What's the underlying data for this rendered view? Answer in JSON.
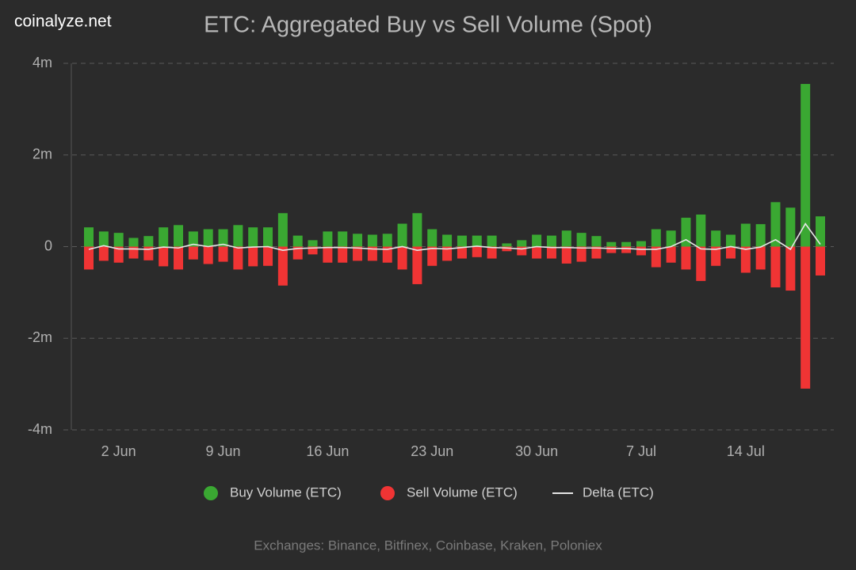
{
  "watermark": "coinalyze.net",
  "footer": "Exchanges: Binance, Bitfinex, Coinbase, Kraken, Poloniex",
  "chart_data": {
    "type": "bar",
    "title": "ETC: Aggregated Buy vs Sell Volume (Spot)",
    "categories": [
      null,
      null,
      "2 Jun",
      null,
      null,
      null,
      null,
      null,
      null,
      "9 Jun",
      null,
      null,
      null,
      null,
      null,
      null,
      "16 Jun",
      null,
      null,
      null,
      null,
      null,
      null,
      "23 Jun",
      null,
      null,
      null,
      null,
      null,
      null,
      "30 Jun",
      null,
      null,
      null,
      null,
      null,
      null,
      "7 Jul",
      null,
      null,
      null,
      null,
      null,
      null,
      "14 Jul",
      null,
      null,
      null,
      null,
      null
    ],
    "ylim": [
      -4000000,
      4000000
    ],
    "yticks": [
      {
        "value": -4000000,
        "label": "-4m"
      },
      {
        "value": -2000000,
        "label": "-2m"
      },
      0,
      {
        "value": 2000000,
        "label": "2m"
      },
      {
        "value": 4000000,
        "label": "4m"
      }
    ],
    "grid": true,
    "legend": "bottom",
    "series": [
      {
        "name": "Buy Volume (ETC)",
        "type": "bar",
        "color": "#3aa832",
        "values": [
          420000,
          330000,
          300000,
          190000,
          230000,
          420000,
          470000,
          330000,
          380000,
          380000,
          470000,
          420000,
          420000,
          730000,
          240000,
          140000,
          330000,
          330000,
          280000,
          260000,
          280000,
          500000,
          730000,
          380000,
          260000,
          240000,
          240000,
          240000,
          70000,
          140000,
          260000,
          240000,
          350000,
          300000,
          230000,
          100000,
          100000,
          120000,
          380000,
          350000,
          630000,
          700000,
          350000,
          260000,
          500000,
          490000,
          970000,
          850000,
          3550000,
          660000
        ]
      },
      {
        "name": "Sell Volume (ETC)",
        "type": "bar",
        "color": "#f03434",
        "values": [
          -500000,
          -310000,
          -350000,
          -260000,
          -300000,
          -430000,
          -500000,
          -280000,
          -380000,
          -330000,
          -500000,
          -430000,
          -420000,
          -850000,
          -280000,
          -170000,
          -350000,
          -350000,
          -310000,
          -310000,
          -350000,
          -500000,
          -820000,
          -420000,
          -310000,
          -260000,
          -230000,
          -260000,
          -100000,
          -190000,
          -260000,
          -260000,
          -370000,
          -330000,
          -260000,
          -140000,
          -140000,
          -190000,
          -450000,
          -350000,
          -500000,
          -750000,
          -420000,
          -260000,
          -570000,
          -500000,
          -890000,
          -960000,
          -3100000,
          -630000
        ]
      },
      {
        "name": "Delta (ETC)",
        "type": "line",
        "color": "#e6e6e6",
        "values": [
          -60000,
          20000,
          -50000,
          -50000,
          -60000,
          -10000,
          -30000,
          50000,
          0,
          50000,
          -30000,
          -10000,
          0,
          -80000,
          -40000,
          -30000,
          -20000,
          -20000,
          -30000,
          -50000,
          -60000,
          0,
          -80000,
          -40000,
          -50000,
          -20000,
          10000,
          -20000,
          -30000,
          -50000,
          0,
          -20000,
          -20000,
          -30000,
          -30000,
          -40000,
          -40000,
          -60000,
          -60000,
          0,
          150000,
          -50000,
          -60000,
          0,
          -60000,
          -10000,
          150000,
          -60000,
          500000,
          50000
        ]
      }
    ]
  }
}
